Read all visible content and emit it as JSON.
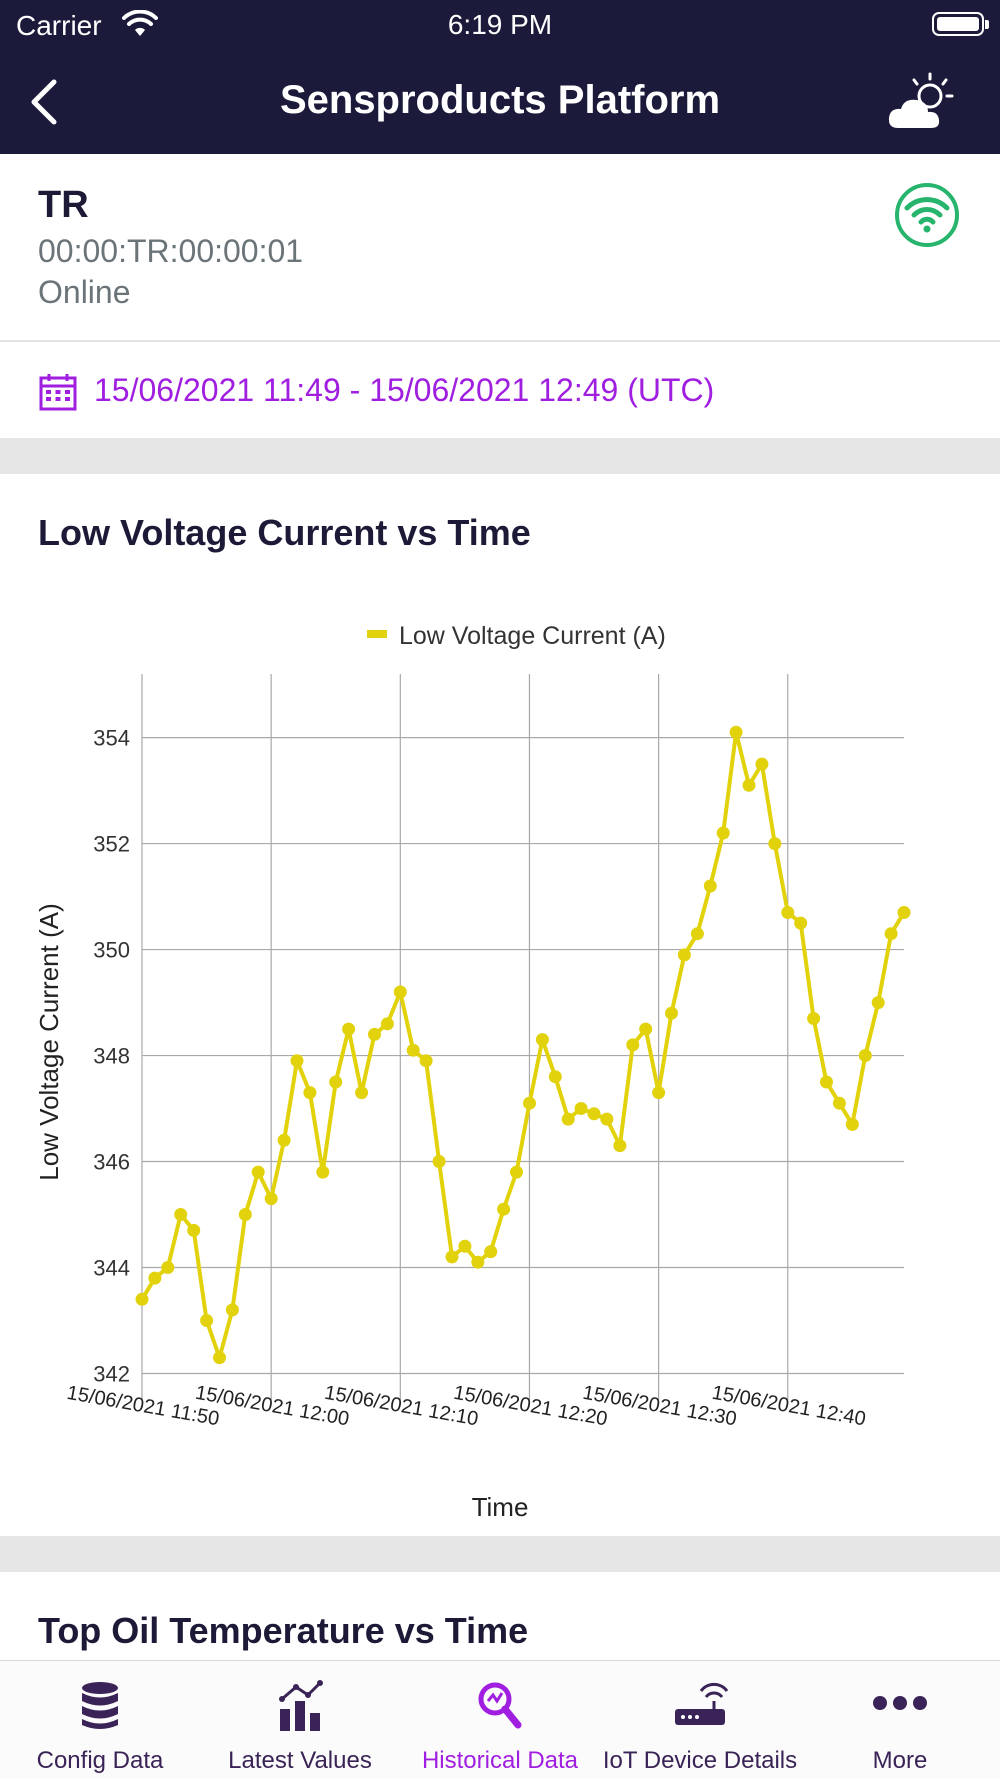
{
  "status_bar": {
    "carrier": "Carrier",
    "time": "6:19 PM"
  },
  "nav": {
    "title": "Sensproducts Platform",
    "back_icon": "chevron-left-icon",
    "weather_icon": "partly-cloudy-icon"
  },
  "device": {
    "name": "TR",
    "mac": "00:00:TR:00:00:01",
    "status": "Online",
    "status_color": "#27b56e"
  },
  "date_range": {
    "text": "15/06/2021 11:49 - 15/06/2021 12:49 (UTC)",
    "color": "#a01ee0"
  },
  "chart1": {
    "title": "Low Voltage Current vs Time"
  },
  "chart2": {
    "title": "Top Oil Temperature vs Time"
  },
  "tabs": [
    {
      "label": "Config Data",
      "icon": "database-icon",
      "active": false
    },
    {
      "label": "Latest Values",
      "icon": "bar-chart-icon",
      "active": false
    },
    {
      "label": "Historical Data",
      "icon": "search-chart-icon",
      "active": true
    },
    {
      "label": "IoT Device Details",
      "icon": "router-icon",
      "active": false
    },
    {
      "label": "More",
      "icon": "more-dots-icon",
      "active": false
    }
  ],
  "colors": {
    "header_bg": "#1c1a3a",
    "accent": "#a01ee0",
    "series": "#e2d20c",
    "tab_inactive": "#3a2356"
  },
  "chart_data": {
    "type": "line",
    "title": "Low Voltage Current vs Time",
    "xlabel": "Time",
    "ylabel": "Low Voltage Current (A)",
    "legend_placement": "top-center",
    "grid": true,
    "ylim": [
      341.5,
      355.2
    ],
    "xlim": [
      "15/06/2021 11:50",
      "15/06/2021 12:49"
    ],
    "yticks": [
      342,
      344,
      346,
      348,
      350,
      352,
      354
    ],
    "xticks": [
      "15/06/2021 11:50",
      "15/06/2021 12:00",
      "15/06/2021 12:10",
      "15/06/2021 12:20",
      "15/06/2021 12:30",
      "15/06/2021 12:40"
    ],
    "series": [
      {
        "name": "Low Voltage Current (A)",
        "color": "#e2d20c",
        "x": [
          "15/06/2021 11:50",
          "15/06/2021 11:51",
          "15/06/2021 11:52",
          "15/06/2021 11:53",
          "15/06/2021 11:54",
          "15/06/2021 11:55",
          "15/06/2021 11:56",
          "15/06/2021 11:57",
          "15/06/2021 11:58",
          "15/06/2021 11:59",
          "15/06/2021 12:00",
          "15/06/2021 12:01",
          "15/06/2021 12:02",
          "15/06/2021 12:03",
          "15/06/2021 12:04",
          "15/06/2021 12:05",
          "15/06/2021 12:06",
          "15/06/2021 12:07",
          "15/06/2021 12:08",
          "15/06/2021 12:09",
          "15/06/2021 12:10",
          "15/06/2021 12:11",
          "15/06/2021 12:12",
          "15/06/2021 12:13",
          "15/06/2021 12:14",
          "15/06/2021 12:15",
          "15/06/2021 12:16",
          "15/06/2021 12:17",
          "15/06/2021 12:18",
          "15/06/2021 12:19",
          "15/06/2021 12:20",
          "15/06/2021 12:21",
          "15/06/2021 12:22",
          "15/06/2021 12:23",
          "15/06/2021 12:24",
          "15/06/2021 12:25",
          "15/06/2021 12:26",
          "15/06/2021 12:27",
          "15/06/2021 12:28",
          "15/06/2021 12:29",
          "15/06/2021 12:30",
          "15/06/2021 12:31",
          "15/06/2021 12:32",
          "15/06/2021 12:33",
          "15/06/2021 12:34",
          "15/06/2021 12:35",
          "15/06/2021 12:36",
          "15/06/2021 12:37",
          "15/06/2021 12:38",
          "15/06/2021 12:39",
          "15/06/2021 12:40",
          "15/06/2021 12:41",
          "15/06/2021 12:42",
          "15/06/2021 12:43",
          "15/06/2021 12:44",
          "15/06/2021 12:45",
          "15/06/2021 12:46",
          "15/06/2021 12:47",
          "15/06/2021 12:48",
          "15/06/2021 12:49"
        ],
        "values": [
          343.4,
          343.8,
          344.0,
          345.0,
          344.7,
          343.0,
          342.3,
          343.2,
          345.0,
          345.8,
          345.3,
          346.4,
          347.9,
          347.3,
          345.8,
          347.5,
          348.5,
          347.3,
          348.4,
          348.6,
          349.2,
          348.1,
          347.9,
          346.0,
          344.2,
          344.4,
          344.1,
          344.3,
          345.1,
          345.8,
          347.1,
          348.3,
          347.6,
          346.8,
          347.0,
          346.9,
          346.8,
          346.3,
          348.2,
          348.5,
          347.3,
          348.8,
          349.9,
          350.3,
          351.2,
          352.2,
          354.1,
          353.1,
          353.5,
          352.0,
          350.7,
          350.5,
          348.7,
          347.5,
          347.1,
          346.7,
          348.0,
          349.0,
          350.3,
          350.7
        ]
      }
    ]
  }
}
